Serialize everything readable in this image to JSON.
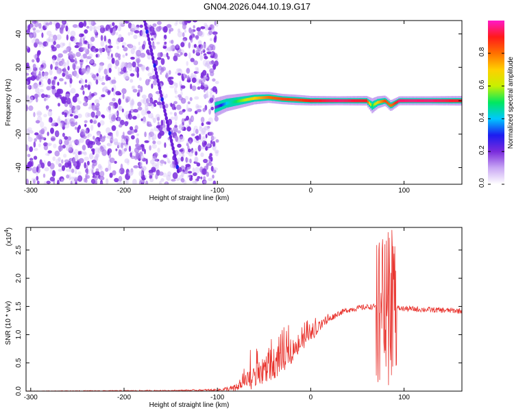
{
  "title": "GN04.2026.044.10.19.G17",
  "chart_data": [
    {
      "type": "heatmap",
      "name": "spectrogram",
      "xlabel": "Height of straight line (km)",
      "ylabel": "Frequency (Hz)",
      "xlim": [
        -305,
        162
      ],
      "ylim": [
        -50,
        48
      ],
      "xticks": [
        -300,
        -200,
        -100,
        0,
        100
      ],
      "xtick_labels": [
        "-300",
        "-200",
        "-100",
        "0",
        "100"
      ],
      "yticks": [
        -40,
        -20,
        0,
        20,
        40
      ],
      "ytick_labels": [
        "-40",
        "-20",
        "0",
        "20",
        "40"
      ],
      "noise_region_x": [
        -305,
        -100
      ],
      "signal_track": {
        "x": [
          -102,
          -90,
          -75,
          -60,
          -45,
          -30,
          -15,
          0,
          30,
          60,
          66,
          72,
          80,
          86,
          95,
          130,
          162
        ],
        "freq": [
          -4,
          -1.5,
          0,
          1.5,
          2,
          1,
          0.5,
          0,
          0,
          0,
          -3,
          -1,
          0,
          -3,
          0,
          0,
          0
        ],
        "amplitude": [
          0.2,
          0.4,
          0.55,
          0.7,
          0.8,
          0.85,
          0.85,
          0.9,
          0.95,
          0.9,
          0.5,
          0.7,
          0.85,
          0.8,
          0.95,
          0.95,
          0.9
        ]
      },
      "diagonal_streak": {
        "x": [
          -178,
          -142
        ],
        "freq": [
          48,
          -42
        ]
      }
    },
    {
      "type": "colorbar",
      "name": "amplitude-colorbar",
      "label": "Normalized spectral amplitude",
      "range": [
        0.0,
        1.0
      ],
      "ticks": [
        0.0,
        0.2,
        0.4,
        0.6,
        0.8
      ],
      "tick_labels": [
        "0.0",
        "0.2",
        "0.4",
        "0.6",
        "0.8"
      ],
      "colors": [
        "#ffffff",
        "#c9a7f4",
        "#7a2bdc",
        "#1c1cf0",
        "#00c8ff",
        "#00e860",
        "#c8f000",
        "#ffd000",
        "#ff7000",
        "#ff1a1a",
        "#ff19c8"
      ]
    },
    {
      "type": "line",
      "name": "snr-plot",
      "xlabel": "Height of straight line (km)",
      "ylabel": "SNR (10 * v/v)",
      "scale_label": "(x10",
      "scale_exponent": "4",
      "xlim": [
        -305,
        162
      ],
      "ylim": [
        0,
        2.9
      ],
      "xticks": [
        -300,
        -200,
        -100,
        0,
        100
      ],
      "xtick_labels": [
        "-300",
        "-200",
        "-100",
        "0",
        "100"
      ],
      "yticks": [
        0.0,
        0.5,
        1.0,
        1.5,
        2.0,
        2.5
      ],
      "ytick_labels": [
        "0.0",
        "0.5",
        "1.0",
        "1.5",
        "2.0",
        "2.5"
      ],
      "color": "#e8302a",
      "envelope": {
        "x": [
          -305,
          -150,
          -100,
          -78,
          -70,
          -60,
          -50,
          -40,
          -30,
          -20,
          -10,
          0,
          10,
          20,
          30,
          40,
          50,
          60,
          72,
          80,
          90,
          100,
          130,
          162
        ],
        "mean": [
          0.0,
          0.01,
          0.02,
          0.05,
          0.15,
          0.25,
          0.35,
          0.45,
          0.55,
          0.7,
          0.85,
          1.0,
          1.15,
          1.28,
          1.38,
          1.44,
          1.47,
          1.49,
          1.5,
          1.5,
          1.47,
          1.46,
          1.44,
          1.42
        ],
        "spread": [
          0.005,
          0.01,
          0.02,
          0.08,
          0.15,
          0.2,
          0.25,
          0.25,
          0.22,
          0.2,
          0.15,
          0.12,
          0.1,
          0.06,
          0.05,
          0.05,
          0.05,
          0.05,
          0.05,
          0.05,
          0.05,
          0.05,
          0.05,
          0.05
        ]
      },
      "burst": {
        "x": [
          70,
          92
        ],
        "min": 0.1,
        "max": 2.9
      }
    }
  ]
}
